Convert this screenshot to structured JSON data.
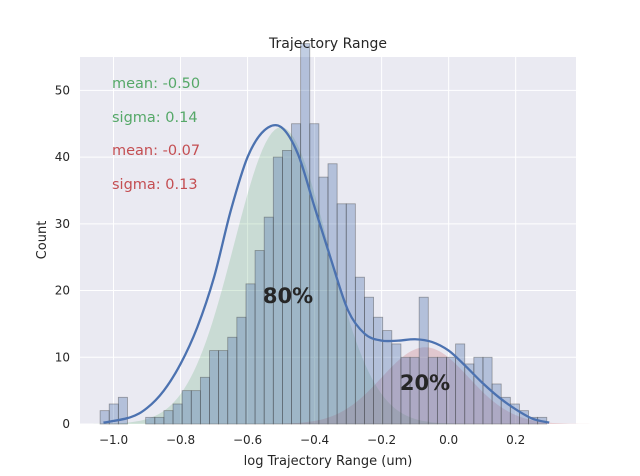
{
  "chart_data": {
    "type": "bar",
    "title": "Trajectory Range",
    "xlabel": "log Trajectory Range (um)",
    "ylabel": "Count",
    "xlim": [
      -1.1,
      0.38
    ],
    "ylim": [
      0,
      55
    ],
    "x_ticks": [
      -1.0,
      -0.8,
      -0.6,
      -0.4,
      -0.2,
      0.0,
      0.2
    ],
    "x_tick_labels": [
      "−1.0",
      "−0.8",
      "−0.6",
      "−0.4",
      "−0.2",
      "0.0",
      "0.2"
    ],
    "y_ticks": [
      0,
      10,
      20,
      30,
      40,
      50
    ],
    "grid": true,
    "histogram": {
      "bin_start": -1.04,
      "bin_width": 0.0272,
      "counts": [
        2,
        3,
        4,
        0,
        0,
        1,
        1,
        2,
        3,
        5,
        5,
        7,
        11,
        11,
        13,
        16,
        21,
        26,
        31,
        40,
        41,
        45,
        57,
        45,
        37,
        39,
        33,
        33,
        22,
        19,
        16,
        14,
        12,
        10,
        10,
        19,
        10,
        10,
        10,
        12,
        9,
        10,
        10,
        6,
        4,
        3,
        2,
        1,
        1,
        0,
        0,
        0,
        0,
        0,
        0,
        0,
        0,
        0,
        0,
        0,
        1
      ],
      "color": "#4c72b0"
    },
    "kde": {
      "x": [
        -1.03,
        -0.95,
        -0.9,
        -0.85,
        -0.8,
        -0.75,
        -0.7,
        -0.65,
        -0.6,
        -0.55,
        -0.5,
        -0.45,
        -0.4,
        -0.35,
        -0.3,
        -0.25,
        -0.2,
        -0.15,
        -0.1,
        -0.05,
        0.0,
        0.05,
        0.1,
        0.15,
        0.2,
        0.25,
        0.3
      ],
      "y": [
        0.2,
        1.0,
        2.4,
        5.0,
        9.0,
        14.5,
        22.0,
        32.0,
        40.0,
        44.0,
        44.5,
        40.5,
        32.5,
        24.5,
        17.0,
        13.5,
        12.5,
        12.5,
        12.7,
        12.3,
        11.0,
        8.7,
        6.2,
        4.0,
        2.2,
        0.8,
        0.2
      ],
      "color": "#4c72b0"
    },
    "components": [
      {
        "mean": -0.5,
        "sigma": 0.14,
        "percent": 80,
        "peak": 44.5,
        "color": "#55a868"
      },
      {
        "mean": -0.07,
        "sigma": 0.13,
        "percent": 20,
        "peak": 11.5,
        "color": "#c44e52"
      }
    ]
  },
  "annotations": {
    "stat_1_mean": "mean: -0.50",
    "stat_1_sigma": "sigma: 0.14",
    "stat_2_mean": "mean: -0.07",
    "stat_2_sigma": "sigma: 0.13",
    "pct_1": "80%",
    "pct_2": "20%",
    "stat_1_color": "#55a868",
    "stat_2_color": "#c44e52"
  }
}
